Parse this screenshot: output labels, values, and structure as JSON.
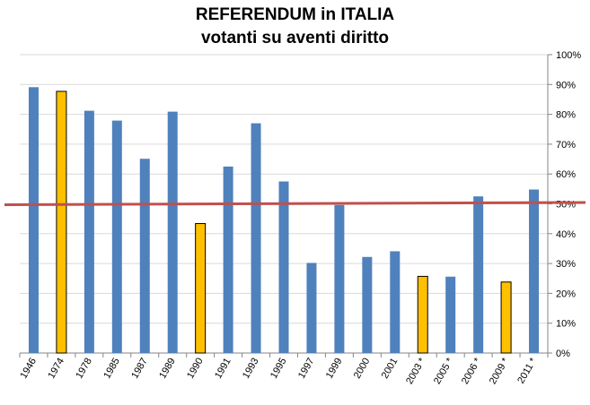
{
  "chart_data": {
    "type": "bar",
    "title": "REFERENDUM in ITALIA",
    "subtitle": "votanti su aventi diritto",
    "categories": [
      "1946",
      "1974",
      "1978",
      "1985",
      "1987",
      "1989",
      "1990",
      "1991",
      "1993",
      "1995",
      "1997",
      "1999",
      "2000",
      "2001",
      "2003 *",
      "2005 *",
      "2006 *",
      "2009 *",
      "2011 *"
    ],
    "values": [
      89.1,
      87.7,
      81.2,
      77.9,
      65.1,
      80.9,
      43.4,
      62.5,
      77.0,
      57.5,
      30.2,
      49.6,
      32.2,
      34.1,
      25.7,
      25.6,
      52.5,
      23.8,
      54.8
    ],
    "highlighted": [
      "1974",
      "1990",
      "2003 *",
      "2009 *"
    ],
    "ylim": [
      0,
      100
    ],
    "yticks": [
      "0%",
      "10%",
      "20%",
      "30%",
      "40%",
      "50%",
      "60%",
      "70%",
      "80%",
      "90%",
      "100%"
    ],
    "threshold": 50,
    "grid": true,
    "colors": {
      "bar": "#4f81bd",
      "highlight": "#ffc000",
      "threshold": "#c0504d",
      "grid": "#d9d9d9"
    }
  }
}
